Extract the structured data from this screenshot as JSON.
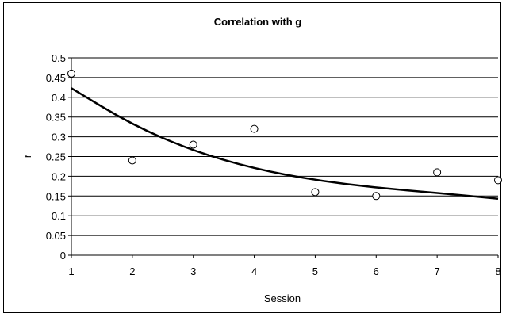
{
  "chart_data": {
    "type": "scatter",
    "title": "Correlation with g",
    "xlabel": "Session",
    "ylabel": "r",
    "xlim": [
      1,
      8
    ],
    "ylim": [
      0,
      0.5
    ],
    "x_ticks": [
      "1",
      "2",
      "3",
      "4",
      "5",
      "6",
      "7",
      "8"
    ],
    "y_ticks": [
      "0",
      "0.05",
      "0.1",
      "0.15",
      "0.2",
      "0.25",
      "0.3",
      "0.35",
      "0.4",
      "0.45",
      "0.5"
    ],
    "grid": "horizontal",
    "series": [
      {
        "type": "scatter",
        "marker": "open-circle",
        "x": [
          1,
          2,
          3,
          4,
          5,
          6,
          7,
          8
        ],
        "y": [
          0.46,
          0.24,
          0.28,
          0.32,
          0.16,
          0.15,
          0.21,
          0.19
        ]
      },
      {
        "type": "line",
        "style": "trendline",
        "x": [
          1,
          2,
          3,
          4,
          5,
          6,
          7,
          8
        ],
        "y": [
          0.423,
          0.33,
          0.264,
          0.219,
          0.19,
          0.171,
          0.158,
          0.143
        ]
      }
    ]
  }
}
